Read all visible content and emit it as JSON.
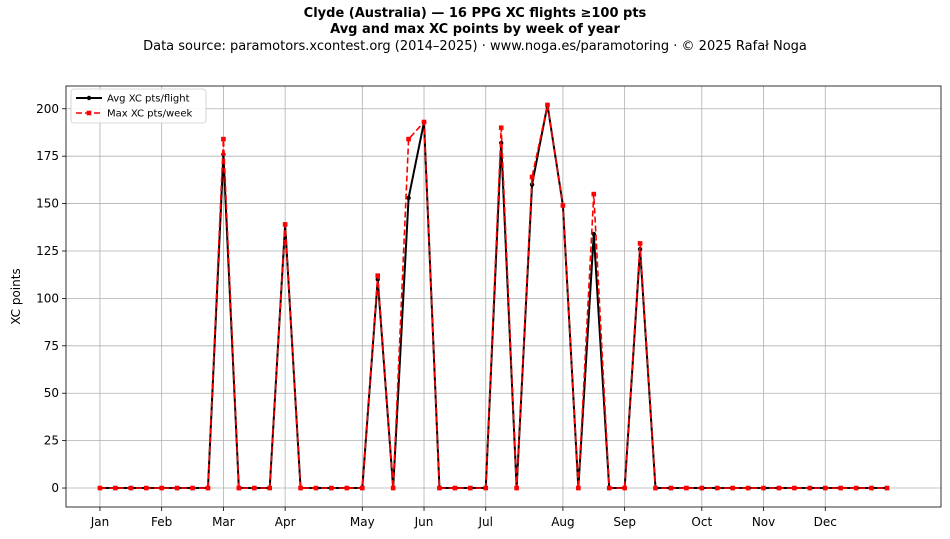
{
  "title": {
    "line1": "Clyde (Australia)  —  16 PPG XC flights ≥100 pts",
    "line2": "Avg and max XC points by week of year",
    "line3": "Data source: paramotors.xcontest.org (2014–2025)  ·  www.noga.es/paramotoring  ·  © 2025 Rafał Noga"
  },
  "chart_data": {
    "type": "line",
    "x": [
      1,
      2,
      3,
      4,
      5,
      6,
      7,
      8,
      9,
      10,
      11,
      12,
      13,
      14,
      15,
      16,
      17,
      18,
      19,
      20,
      21,
      22,
      23,
      24,
      25,
      26,
      27,
      28,
      29,
      30,
      31,
      32,
      33,
      34,
      35,
      36,
      37,
      38,
      39,
      40,
      41,
      42,
      43,
      44,
      45,
      46,
      47,
      48,
      49,
      50,
      51,
      52
    ],
    "x_label": "",
    "ylabel": "XC points",
    "ylim": [
      -10,
      212
    ],
    "yticks": [
      0,
      25,
      50,
      75,
      100,
      125,
      150,
      175,
      200
    ],
    "xlim": [
      -1.2,
      55.5
    ],
    "month_ticks": [
      {
        "label": "Jan",
        "x": 1
      },
      {
        "label": "Feb",
        "x": 5
      },
      {
        "label": "Mar",
        "x": 9
      },
      {
        "label": "Apr",
        "x": 13
      },
      {
        "label": "May",
        "x": 18
      },
      {
        "label": "Jun",
        "x": 22
      },
      {
        "label": "Jul",
        "x": 26
      },
      {
        "label": "Aug",
        "x": 31
      },
      {
        "label": "Sep",
        "x": 35
      },
      {
        "label": "Oct",
        "x": 40
      },
      {
        "label": "Nov",
        "x": 44
      },
      {
        "label": "Dec",
        "x": 48
      }
    ],
    "grid": true,
    "legend_position": "top-left",
    "series": [
      {
        "name": "Avg XC pts/flight",
        "color": "#000000",
        "style": "solid",
        "marker": "circle",
        "values": [
          0,
          0,
          0,
          0,
          0,
          0,
          0,
          0,
          176,
          0,
          0,
          0,
          139,
          0,
          0,
          0,
          0,
          0,
          110,
          0,
          153,
          193,
          0,
          0,
          0,
          0,
          182,
          0,
          160,
          202,
          149,
          0,
          134,
          0,
          0,
          126,
          0,
          0,
          0,
          0,
          0,
          0,
          0,
          0,
          0,
          0,
          0,
          0,
          0,
          0,
          0,
          0
        ]
      },
      {
        "name": "Max XC pts/week",
        "color": "#ff0000",
        "style": "dashed",
        "marker": "square",
        "values": [
          0,
          0,
          0,
          0,
          0,
          0,
          0,
          0,
          184,
          0,
          0,
          0,
          139,
          0,
          0,
          0,
          0,
          0,
          112,
          0,
          184,
          193,
          0,
          0,
          0,
          0,
          190,
          0,
          164,
          202,
          149,
          0,
          155,
          0,
          0,
          129,
          0,
          0,
          0,
          0,
          0,
          0,
          0,
          0,
          0,
          0,
          0,
          0,
          0,
          0,
          0,
          0
        ]
      }
    ]
  }
}
